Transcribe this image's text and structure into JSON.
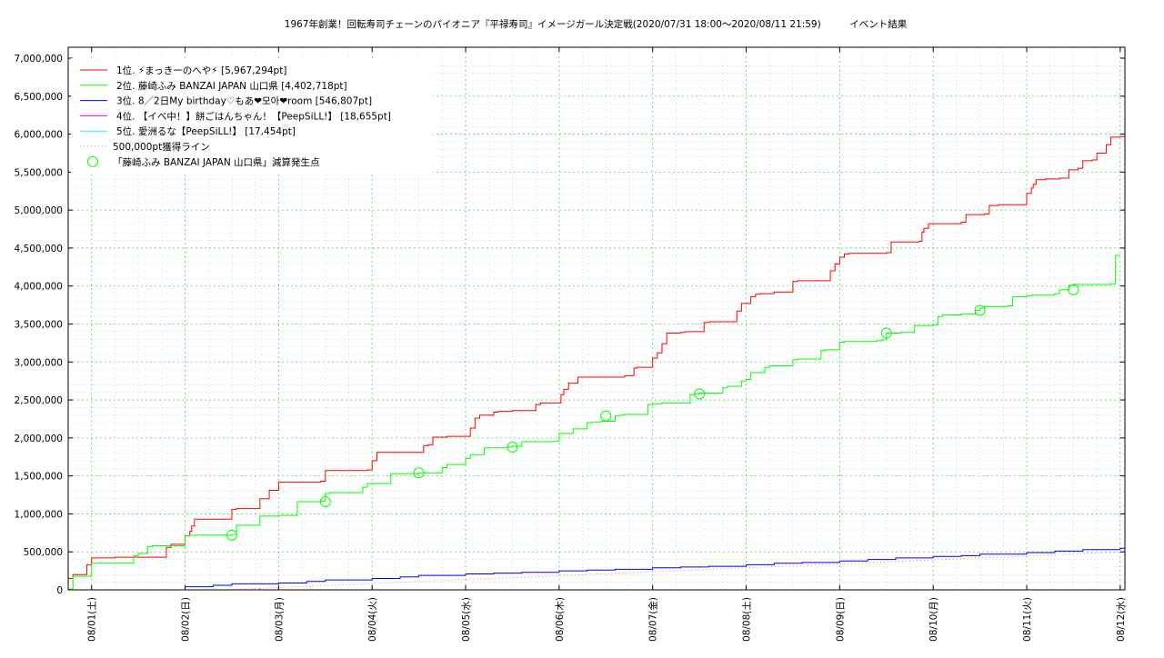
{
  "chart_data": {
    "type": "line",
    "title": "1967年創業！回転寿司チェーンのパイオニア『平禄寿司』イメージガール決定戦(2020/07/31 18:00〜2020/08/11 21:59)　　　イベント結果",
    "xlabel": "",
    "ylabel": "",
    "x_unit": "days since 08/01 00:00",
    "xlim": [
      0,
      11.3
    ],
    "ylim": [
      0,
      7000000
    ],
    "grid": true,
    "legend_position": "top-left",
    "y_ticks": [
      0,
      500000,
      1000000,
      1500000,
      2000000,
      2500000,
      3000000,
      3500000,
      4000000,
      4500000,
      5000000,
      5500000,
      6000000,
      6500000,
      7000000
    ],
    "y_tick_labels": [
      "0",
      "500,000",
      "1,000,000",
      "1,500,000",
      "2,000,000",
      "2,500,000",
      "3,000,000",
      "3,500,000",
      "4,000,000",
      "4,500,000",
      "5,000,000",
      "5,500,000",
      "6,000,000",
      "6,500,000",
      "7,000,000"
    ],
    "x_ticks": [
      0,
      1,
      2,
      3,
      4,
      5,
      6,
      7,
      8,
      9,
      10,
      11
    ],
    "x_tick_labels": [
      "08/01(土)",
      "08/02(日)",
      "08/03(月)",
      "08/04(火)",
      "08/05(水)",
      "08/06(木)",
      "08/07(金)",
      "08/08(土)",
      "08/09(日)",
      "08/10(月)",
      "08/11(火)",
      "08/12(水)"
    ],
    "series": [
      {
        "name": "1位. ⚡まっきーのへや⚡ [5,967,294pt]",
        "color": "#ff0000",
        "style": "step",
        "x": [
          -0.25,
          -0.2,
          -0.05,
          0.0,
          0.25,
          0.8,
          0.85,
          1.0,
          1.05,
          1.07,
          1.1,
          1.5,
          1.55,
          1.8,
          1.9,
          2.0,
          2.45,
          2.5,
          2.95,
          3.0,
          3.05,
          3.55,
          3.6,
          3.65,
          3.8,
          4.05,
          4.1,
          4.15,
          4.3,
          4.35,
          4.5,
          4.75,
          4.8,
          5.02,
          5.05,
          5.1,
          5.2,
          5.7,
          5.8,
          5.83,
          6.0,
          6.05,
          6.1,
          6.15,
          6.3,
          6.35,
          6.55,
          6.6,
          6.9,
          6.95,
          7.05,
          7.1,
          7.15,
          7.3,
          7.5,
          7.55,
          7.9,
          7.95,
          8.0,
          8.05,
          8.1,
          8.5,
          8.55,
          8.85,
          8.88,
          8.9,
          8.95,
          9.3,
          9.35,
          9.55,
          9.6,
          9.7,
          10.0,
          10.05,
          10.07,
          10.1,
          10.2,
          10.35,
          10.45,
          10.55,
          10.6,
          10.7,
          10.75,
          10.85,
          10.9,
          10.95,
          11.0,
          11.05
        ],
        "y": [
          150000,
          200000,
          330000,
          420000,
          430000,
          560000,
          600000,
          710000,
          770000,
          840000,
          930000,
          1060000,
          1070000,
          1200000,
          1310000,
          1420000,
          1430000,
          1570000,
          1580000,
          1700000,
          1810000,
          1900000,
          1910000,
          2010000,
          2020000,
          2130000,
          2260000,
          2300000,
          2340000,
          2350000,
          2360000,
          2440000,
          2460000,
          2570000,
          2640000,
          2720000,
          2800000,
          2820000,
          2920000,
          2930000,
          3050000,
          3120000,
          3240000,
          3380000,
          3390000,
          3400000,
          3520000,
          3530000,
          3670000,
          3770000,
          3860000,
          3890000,
          3900000,
          3920000,
          4060000,
          4070000,
          4200000,
          4290000,
          4380000,
          4420000,
          4430000,
          4440000,
          4580000,
          4590000,
          4710000,
          4760000,
          4820000,
          4840000,
          4940000,
          4950000,
          5060000,
          5070000,
          5220000,
          5290000,
          5340000,
          5400000,
          5410000,
          5420000,
          5530000,
          5550000,
          5650000,
          5660000,
          5750000,
          5860000,
          5960000,
          5960000,
          5967294,
          5967294
        ]
      },
      {
        "name": "2位. 藤崎ふみ BANZAI JAPAN 山口県 [4,402,718pt]",
        "color": "#00ff00",
        "style": "step",
        "x": [
          -0.25,
          -0.2,
          0.0,
          0.45,
          0.5,
          0.6,
          0.65,
          1.0,
          1.05,
          1.5,
          1.55,
          1.8,
          2.0,
          2.2,
          2.45,
          2.5,
          2.55,
          2.9,
          2.95,
          3.2,
          3.5,
          3.75,
          3.8,
          4.0,
          4.05,
          4.2,
          4.45,
          4.5,
          4.6,
          4.95,
          5.0,
          5.15,
          5.3,
          5.35,
          5.45,
          5.6,
          5.65,
          5.7,
          5.95,
          6.0,
          6.1,
          6.4,
          6.45,
          6.5,
          6.75,
          6.8,
          6.95,
          7.0,
          7.05,
          7.2,
          7.25,
          7.5,
          7.55,
          7.8,
          7.85,
          8.0,
          8.05,
          8.4,
          8.45,
          8.5,
          8.65,
          8.8,
          9.0,
          9.05,
          9.1,
          9.3,
          9.45,
          9.5,
          9.55,
          9.8,
          9.85,
          10.0,
          10.05,
          10.3,
          10.35,
          10.45,
          10.5,
          10.9,
          10.95,
          11.0
        ],
        "y": [
          10000,
          180000,
          350000,
          450000,
          480000,
          570000,
          580000,
          710000,
          720000,
          730000,
          850000,
          970000,
          980000,
          1160000,
          1170000,
          1270000,
          1280000,
          1350000,
          1400000,
          1530000,
          1540000,
          1610000,
          1650000,
          1730000,
          1780000,
          1870000,
          1880000,
          1890000,
          1950000,
          1960000,
          2060000,
          2120000,
          2200000,
          2210000,
          2220000,
          2290000,
          2300000,
          2310000,
          2440000,
          2450000,
          2460000,
          2570000,
          2580000,
          2590000,
          2660000,
          2680000,
          2750000,
          2770000,
          2860000,
          2930000,
          2950000,
          3030000,
          3040000,
          3150000,
          3160000,
          3260000,
          3270000,
          3280000,
          3290000,
          3380000,
          3390000,
          3480000,
          3490000,
          3600000,
          3620000,
          3630000,
          3680000,
          3710000,
          3730000,
          3740000,
          3860000,
          3870000,
          3880000,
          3900000,
          3950000,
          4010000,
          4020000,
          4030000,
          4402718,
          4402718
        ]
      },
      {
        "name": "3位. 8／2日My birthday♡もあ❤모아❤room [546,807pt]",
        "color": "#0000ff",
        "style": "step",
        "x": [
          1.0,
          1.3,
          1.5,
          2.0,
          2.3,
          2.5,
          3.0,
          3.3,
          3.5,
          4.0,
          4.3,
          4.6,
          5.0,
          5.3,
          5.6,
          6.0,
          6.3,
          6.6,
          7.0,
          7.3,
          7.6,
          8.0,
          8.3,
          8.6,
          9.0,
          9.3,
          9.5,
          10.0,
          10.3,
          10.6,
          11.0,
          11.05
        ],
        "y": [
          40000,
          60000,
          80000,
          90000,
          110000,
          130000,
          150000,
          170000,
          190000,
          210000,
          220000,
          230000,
          250000,
          260000,
          270000,
          290000,
          300000,
          310000,
          330000,
          350000,
          360000,
          380000,
          400000,
          420000,
          440000,
          450000,
          470000,
          490000,
          510000,
          530000,
          546807,
          546807
        ]
      },
      {
        "name": "4位. 【イベ中！】餅ごはんちゃん！【PeepSiLL!】 [18,655pt]",
        "color": "#ff00ff",
        "style": "step",
        "x": [
          -0.25,
          1.8
        ],
        "y": [
          0,
          18655
        ]
      },
      {
        "name": "5位. 愛洲るな【PeepSiLL!】 [17,454pt]",
        "color": "#00ffff",
        "style": "step",
        "x": [
          -0.25,
          11.05
        ],
        "y": [
          0,
          17454
        ]
      },
      {
        "name": "500,000pt獲得ライン",
        "color": "#ff7f7f",
        "style": "dotted",
        "x": [
          1.4,
          11.05
        ],
        "y": [
          0,
          500000
        ]
      }
    ],
    "markers": {
      "name": "「藤崎ふみ BANZAI JAPAN 山口県」減算発生点",
      "color": "#00ff00",
      "points": [
        {
          "x": 1.5,
          "y": 720000
        },
        {
          "x": 2.5,
          "y": 1160000
        },
        {
          "x": 3.5,
          "y": 1540000
        },
        {
          "x": 4.5,
          "y": 1880000
        },
        {
          "x": 5.5,
          "y": 2290000
        },
        {
          "x": 6.5,
          "y": 2580000
        },
        {
          "x": 8.5,
          "y": 3380000
        },
        {
          "x": 9.5,
          "y": 3680000
        },
        {
          "x": 10.5,
          "y": 3950000
        }
      ]
    }
  }
}
